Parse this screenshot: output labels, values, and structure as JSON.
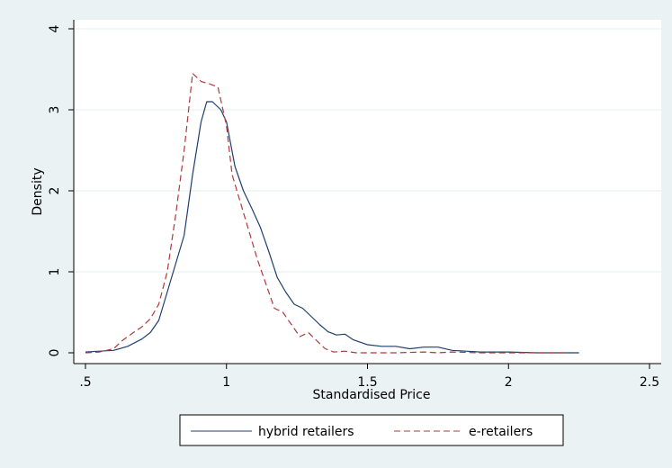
{
  "chart_data": {
    "type": "line",
    "title": "",
    "xlabel": "Standardised Price",
    "ylabel": "Density",
    "xlim": [
      0.5,
      2.5
    ],
    "ylim": [
      0,
      4
    ],
    "x_ticks": [
      {
        "value": 0.5,
        "label": ".5"
      },
      {
        "value": 1,
        "label": "1"
      },
      {
        "value": 1.5,
        "label": "1.5"
      },
      {
        "value": 2,
        "label": "2"
      },
      {
        "value": 2.5,
        "label": "2.5"
      }
    ],
    "y_ticks": [
      {
        "value": 0,
        "label": "0"
      },
      {
        "value": 1,
        "label": "1"
      },
      {
        "value": 2,
        "label": "2"
      },
      {
        "value": 3,
        "label": "3"
      },
      {
        "value": 4,
        "label": "4"
      }
    ],
    "grid": "horizontal",
    "legend_position": "bottom",
    "colors": {
      "background": "#eaf2f3",
      "plot": "#ffffff",
      "grid": "#e3ecef"
    },
    "series": [
      {
        "name": "hybrid retailers",
        "color": "#1f3f6e",
        "dash": "solid",
        "points": [
          [
            0.5,
            0.01
          ],
          [
            0.55,
            0.02
          ],
          [
            0.6,
            0.03
          ],
          [
            0.65,
            0.08
          ],
          [
            0.7,
            0.17
          ],
          [
            0.73,
            0.25
          ],
          [
            0.76,
            0.4
          ],
          [
            0.79,
            0.75
          ],
          [
            0.82,
            1.1
          ],
          [
            0.85,
            1.45
          ],
          [
            0.88,
            2.2
          ],
          [
            0.91,
            2.85
          ],
          [
            0.93,
            3.1
          ],
          [
            0.95,
            3.1
          ],
          [
            0.98,
            3.0
          ],
          [
            1.0,
            2.85
          ],
          [
            1.03,
            2.3
          ],
          [
            1.06,
            2.0
          ],
          [
            1.09,
            1.78
          ],
          [
            1.12,
            1.55
          ],
          [
            1.15,
            1.25
          ],
          [
            1.18,
            0.93
          ],
          [
            1.21,
            0.75
          ],
          [
            1.24,
            0.6
          ],
          [
            1.27,
            0.55
          ],
          [
            1.3,
            0.45
          ],
          [
            1.33,
            0.35
          ],
          [
            1.36,
            0.26
          ],
          [
            1.39,
            0.22
          ],
          [
            1.42,
            0.23
          ],
          [
            1.45,
            0.16
          ],
          [
            1.5,
            0.1
          ],
          [
            1.55,
            0.08
          ],
          [
            1.6,
            0.08
          ],
          [
            1.65,
            0.05
          ],
          [
            1.7,
            0.07
          ],
          [
            1.75,
            0.07
          ],
          [
            1.8,
            0.03
          ],
          [
            1.85,
            0.02
          ],
          [
            1.9,
            0.01
          ],
          [
            2.0,
            0.01
          ],
          [
            2.1,
            0.0
          ],
          [
            2.25,
            0.0
          ]
        ]
      },
      {
        "name": "e-retailers",
        "color": "#b3383a",
        "dash": "dashed",
        "points": [
          [
            0.5,
            0.0
          ],
          [
            0.55,
            0.01
          ],
          [
            0.6,
            0.05
          ],
          [
            0.63,
            0.15
          ],
          [
            0.67,
            0.25
          ],
          [
            0.7,
            0.32
          ],
          [
            0.73,
            0.42
          ],
          [
            0.76,
            0.6
          ],
          [
            0.79,
            1.0
          ],
          [
            0.82,
            1.7
          ],
          [
            0.85,
            2.5
          ],
          [
            0.88,
            3.45
          ],
          [
            0.91,
            3.35
          ],
          [
            0.94,
            3.32
          ],
          [
            0.97,
            3.28
          ],
          [
            1.0,
            2.8
          ],
          [
            1.02,
            2.2
          ],
          [
            1.05,
            1.85
          ],
          [
            1.08,
            1.5
          ],
          [
            1.11,
            1.15
          ],
          [
            1.14,
            0.85
          ],
          [
            1.17,
            0.55
          ],
          [
            1.2,
            0.5
          ],
          [
            1.23,
            0.35
          ],
          [
            1.26,
            0.2
          ],
          [
            1.29,
            0.25
          ],
          [
            1.32,
            0.15
          ],
          [
            1.35,
            0.05
          ],
          [
            1.38,
            0.01
          ],
          [
            1.42,
            0.02
          ],
          [
            1.46,
            0.0
          ],
          [
            1.5,
            0.0
          ],
          [
            1.6,
            0.0
          ],
          [
            1.7,
            0.01
          ],
          [
            1.75,
            0.0
          ],
          [
            1.8,
            0.01
          ],
          [
            1.9,
            0.0
          ],
          [
            2.0,
            0.0
          ],
          [
            2.1,
            0.0
          ],
          [
            2.2,
            0.0
          ]
        ]
      }
    ]
  }
}
